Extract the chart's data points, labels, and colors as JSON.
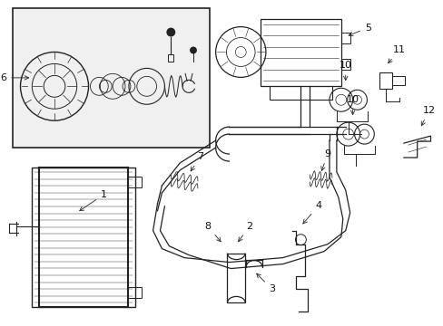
{
  "bg_color": "#ffffff",
  "line_color": "#222222",
  "label_color": "#111111",
  "font_size": 8,
  "fig_w": 4.89,
  "fig_h": 3.6,
  "dpi": 100
}
